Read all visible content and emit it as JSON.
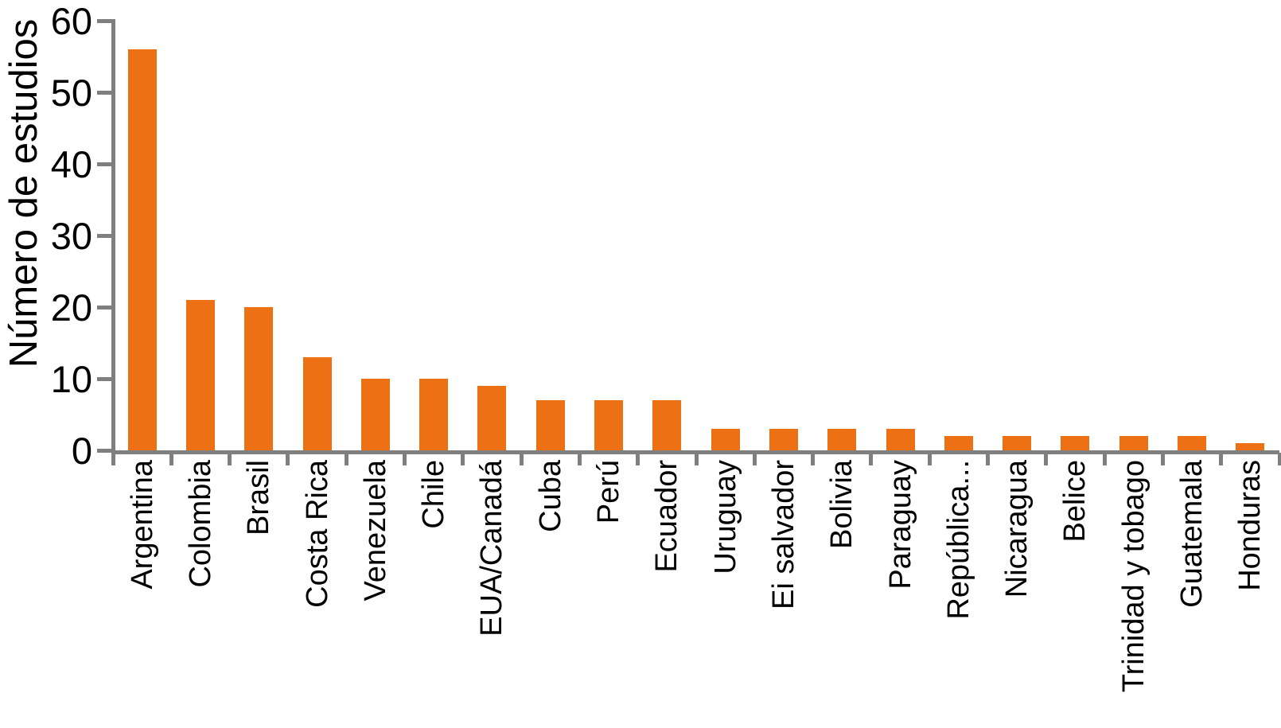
{
  "chart_data": {
    "type": "bar",
    "title": "",
    "xlabel": "",
    "ylabel": "Número de estudios",
    "categories": [
      "Argentina",
      "Colombia",
      "Brasil",
      "Costa Rica",
      "Venezuela",
      "Chile",
      "EUA/Canadá",
      "Cuba",
      "Perú",
      "Ecuador",
      "Uruguay",
      "Ei salvador",
      "Bolivia",
      "Paraguay",
      "República...",
      "Nicaragua",
      "Belice",
      "Trinidad y tobago",
      "Guatemala",
      "Honduras"
    ],
    "values": [
      56,
      21,
      20,
      13,
      10,
      10,
      9,
      7,
      7,
      7,
      3,
      3,
      3,
      3,
      2,
      2,
      2,
      2,
      2,
      1
    ],
    "ylim": [
      0,
      60
    ],
    "yticks": [
      0,
      10,
      20,
      30,
      40,
      50,
      60
    ],
    "grid": false,
    "legend": "none",
    "bar_color": "#EE7014",
    "axis_color": "#7F7F7F",
    "text_color": "#000000"
  }
}
